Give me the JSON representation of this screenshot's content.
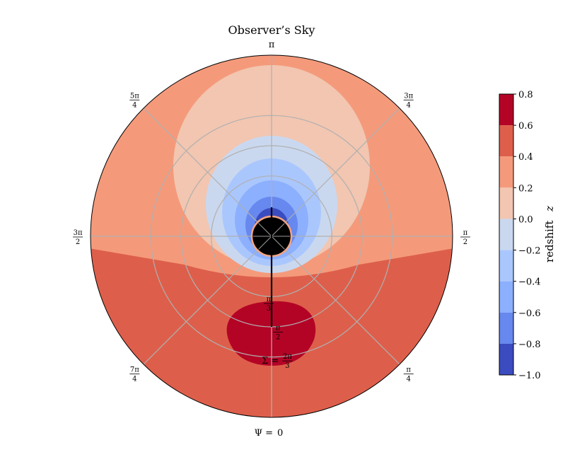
{
  "chart_data": {
    "type": "heatmap",
    "projection": "polar",
    "title": "Observer’s Sky",
    "colorbar": {
      "label": "redshift",
      "label_symbol": "z",
      "ticks": [
        0.8,
        0.6,
        0.4,
        0.2,
        0.0,
        -0.2,
        -0.4,
        -0.6,
        -0.8,
        -1.0
      ],
      "tick_labels": [
        "0.8",
        "0.6",
        "0.4",
        "0.2",
        "0.0",
        "−0.2",
        "−0.4",
        "−0.6",
        "−0.8",
        "−1.0"
      ],
      "range": [
        -1.0,
        0.8
      ],
      "levels": [
        {
          "range": [
            0.6,
            0.8
          ],
          "color": "#b40426"
        },
        {
          "range": [
            0.4,
            0.6
          ],
          "color": "#dd5f4b"
        },
        {
          "range": [
            0.2,
            0.4
          ],
          "color": "#f49a7b"
        },
        {
          "range": [
            0.0,
            0.2
          ],
          "color": "#f2c6b1"
        },
        {
          "range": [
            -0.2,
            0.0
          ],
          "color": "#cad8ef"
        },
        {
          "range": [
            -0.4,
            -0.2
          ],
          "color": "#aac7fd"
        },
        {
          "range": [
            -0.6,
            -0.4
          ],
          "color": "#8caffe"
        },
        {
          "range": [
            -0.8,
            -0.6
          ],
          "color": "#6788ee"
        },
        {
          "range": [
            -1.0,
            -0.8
          ],
          "color": "#3b4cc0"
        }
      ]
    },
    "angular_axis": {
      "label_prefix": "Ψ =",
      "ticks": [
        {
          "value": 0,
          "num": "0",
          "den": ""
        },
        {
          "value": 0.25,
          "num": "π",
          "den": "4"
        },
        {
          "value": 0.5,
          "num": "π",
          "den": "2"
        },
        {
          "value": 0.75,
          "num": "3π",
          "den": "4"
        },
        {
          "value": 1.0,
          "num": "π",
          "den": ""
        },
        {
          "value": 1.25,
          "num": "5π",
          "den": "4"
        },
        {
          "value": 1.5,
          "num": "3π",
          "den": "2"
        },
        {
          "value": 1.75,
          "num": "7π",
          "den": "4"
        }
      ]
    },
    "radial_axis": {
      "label_prefix": "Σ =",
      "max_value": 1.0,
      "ticks": [
        {
          "value": 0.3333,
          "num": "π",
          "den": "3"
        },
        {
          "value": 0.5,
          "num": "π",
          "den": "2"
        },
        {
          "value": 0.6667,
          "num": "2π",
          "den": "3"
        }
      ]
    },
    "grid": true,
    "regions": {
      "outer_redshift": 0.5,
      "upper_redshift": 0.3,
      "cap_redshift": 0.1,
      "blueshift_rings": [
        -0.1,
        -0.3,
        -0.5,
        -0.7,
        -0.9
      ],
      "hotspot_redshift": 0.7,
      "shadow_color": "#000000",
      "shadow_rim_color": "#f4a582"
    },
    "jet_line": {
      "from_radius": 0.16,
      "to_radius": 0.5,
      "angle": 0,
      "color": "#000000"
    }
  }
}
